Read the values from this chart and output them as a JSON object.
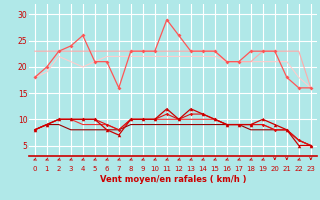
{
  "xlabel": "Vent moyen/en rafales ( km/h )",
  "background_color": "#b0e8e8",
  "grid_color": "#ffffff",
  "x": [
    0,
    1,
    2,
    3,
    4,
    5,
    6,
    7,
    8,
    9,
    10,
    11,
    12,
    13,
    14,
    15,
    16,
    17,
    18,
    19,
    20,
    21,
    22,
    23
  ],
  "line1": [
    18,
    20,
    23,
    24,
    26,
    21,
    21,
    16,
    23,
    23,
    23,
    29,
    26,
    23,
    23,
    23,
    21,
    21,
    23,
    23,
    23,
    18,
    16,
    16
  ],
  "line2": [
    23,
    23,
    23,
    23,
    23,
    23,
    23,
    23,
    23,
    23,
    23,
    23,
    23,
    23,
    23,
    23,
    21,
    21,
    21,
    23,
    23,
    23,
    23,
    16
  ],
  "line3": [
    18,
    19,
    22,
    21,
    20,
    21,
    22,
    22,
    22,
    22,
    22,
    22,
    22,
    22,
    22,
    22,
    21,
    21,
    21,
    21,
    21,
    21,
    18,
    16
  ],
  "line4": [
    8,
    9,
    10,
    10,
    10,
    10,
    8,
    7,
    10,
    10,
    10,
    12,
    10,
    12,
    11,
    10,
    9,
    9,
    9,
    10,
    9,
    8,
    5,
    5
  ],
  "line5": [
    8,
    9,
    10,
    10,
    10,
    10,
    9,
    8,
    10,
    10,
    10,
    11,
    10,
    11,
    11,
    10,
    9,
    9,
    9,
    9,
    8,
    8,
    6,
    5
  ],
  "line6": [
    8,
    9,
    10,
    10,
    9,
    9,
    9,
    8,
    10,
    10,
    10,
    10,
    10,
    10,
    10,
    10,
    9,
    9,
    9,
    9,
    8,
    8,
    6,
    5
  ],
  "line7": [
    8,
    9,
    9,
    8,
    8,
    8,
    8,
    8,
    9,
    9,
    9,
    9,
    9,
    9,
    9,
    9,
    9,
    9,
    8,
    8,
    8,
    8,
    6,
    5
  ],
  "line1_color": "#ff5555",
  "line2_color": "#ffaaaa",
  "line3_color": "#ffcccc",
  "line4_color": "#cc0000",
  "line5_color": "#dd1111",
  "line6_color": "#ee3333",
  "line7_color": "#990000",
  "arrow_color": "#cc0000",
  "ylim": [
    3,
    32
  ],
  "yticks": [
    5,
    10,
    15,
    20,
    25,
    30
  ],
  "xticks": [
    0,
    1,
    2,
    3,
    4,
    5,
    6,
    7,
    8,
    9,
    10,
    11,
    12,
    13,
    14,
    15,
    16,
    17,
    18,
    19,
    20,
    21,
    22,
    23
  ],
  "arrow_angles_deg": [
    225,
    225,
    225,
    225,
    225,
    225,
    225,
    225,
    225,
    225,
    225,
    225,
    225,
    225,
    225,
    225,
    225,
    225,
    225,
    225,
    270,
    270,
    225,
    270
  ]
}
